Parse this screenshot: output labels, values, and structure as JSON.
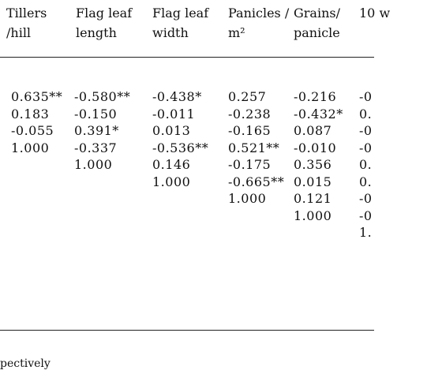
{
  "table": {
    "headers": [
      "Tillers /hill",
      "Flag leaf length",
      "Flag leaf width",
      "Panicles / m²",
      "Grains/ panicle",
      "10 w"
    ],
    "rows": [
      [
        "0.635**",
        "-0.580**",
        "-0.438*",
        "0.257",
        "-0.216",
        "-0"
      ],
      [
        "0.183",
        "-0.150",
        "-0.011",
        "-0.238",
        "-0.432*",
        "0."
      ],
      [
        "-0.055",
        "0.391*",
        "0.013",
        "-0.165",
        "0.087",
        "-0"
      ],
      [
        "1.000",
        "-0.337",
        "-0.536**",
        "0.521**",
        "-0.010",
        "-0"
      ],
      [
        null,
        "1.000",
        "0.146",
        "-0.175",
        "0.356",
        "0."
      ],
      [
        null,
        null,
        "1.000",
        "-0.665**",
        "0.015",
        "0."
      ],
      [
        null,
        null,
        null,
        "1.000",
        "0.121",
        "-0"
      ],
      [
        null,
        null,
        null,
        null,
        "1.000",
        "-0"
      ],
      [
        null,
        null,
        null,
        null,
        null,
        "1."
      ]
    ]
  },
  "footnote": "pectively"
}
